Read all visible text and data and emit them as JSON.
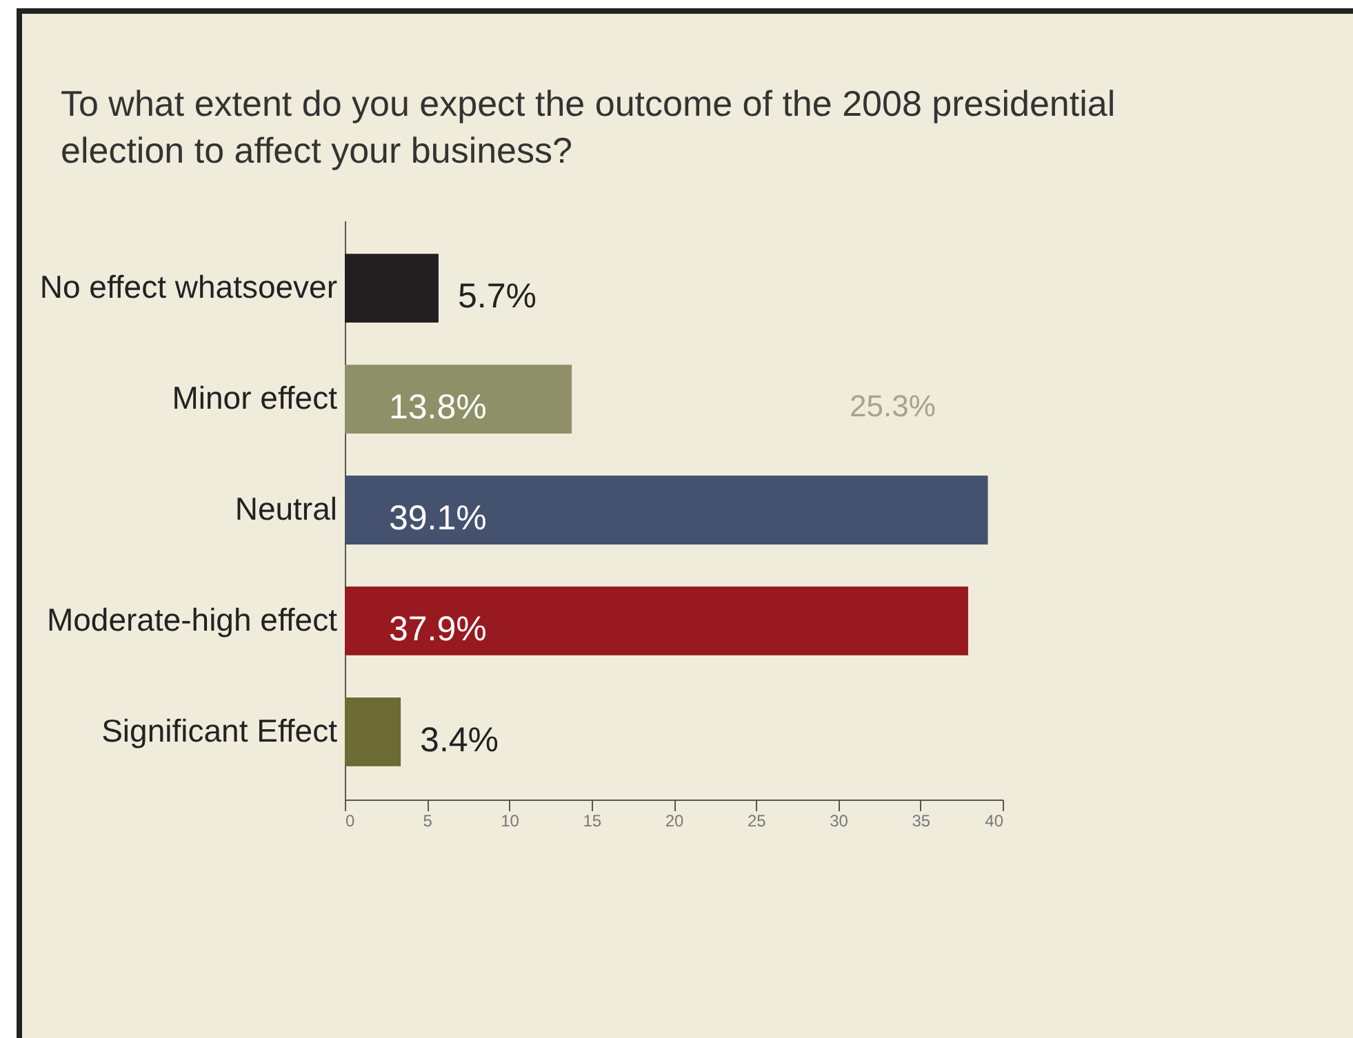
{
  "chart_data": {
    "type": "bar",
    "orientation": "horizontal",
    "title": "To what extent do you expect the outcome of the 2008 presidential election to affect your business?",
    "categories": [
      "No effect whatsoever",
      "Minor effect",
      "Neutral",
      "Moderate-high effect",
      "Significant Effect"
    ],
    "values": [
      5.7,
      13.8,
      39.1,
      37.9,
      3.4
    ],
    "colors": [
      "#231f20",
      "#8e9068",
      "#44526f",
      "#98191f",
      "#6b6b33"
    ],
    "value_labels": [
      "5.7%",
      "13.8%",
      "39.1%",
      "37.9%",
      "3.4%"
    ],
    "xlim": [
      0,
      40
    ],
    "xticks": [
      0,
      5,
      10,
      15,
      20,
      25,
      30,
      35,
      40
    ],
    "annotations": [
      "25.3%"
    ],
    "grid": false,
    "legend": false
  }
}
